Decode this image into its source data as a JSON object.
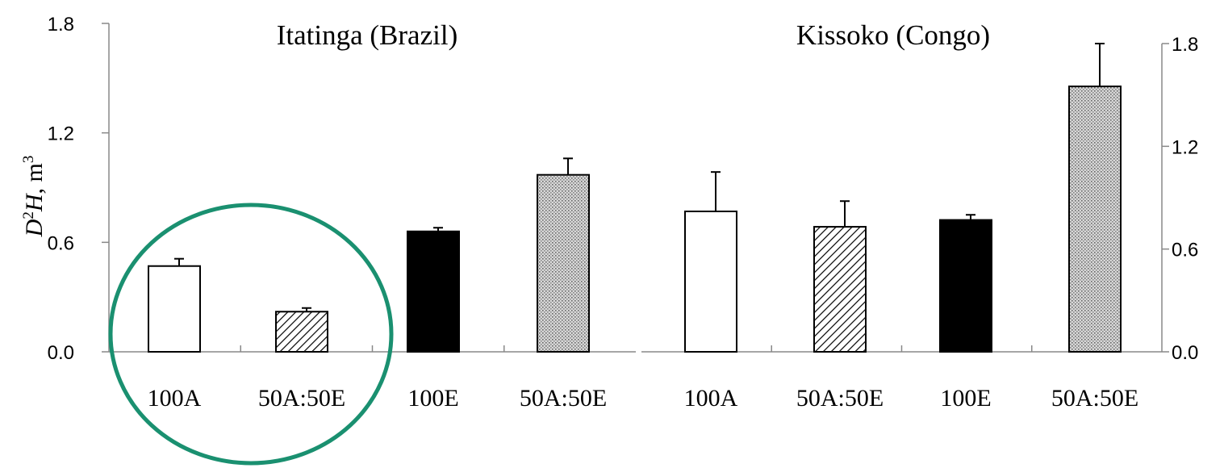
{
  "ylabel": {
    "base": "D",
    "sup1": "2",
    "italic_var": "H",
    "unit": ", m",
    "sup2": "3"
  },
  "chart_data": [
    {
      "type": "bar",
      "title": "Itatinga (Brazil)",
      "categories": [
        "100A",
        "50A:50E",
        "100E",
        "50A:50E"
      ],
      "values": [
        0.47,
        0.22,
        0.66,
        0.97
      ],
      "errors": [
        0.04,
        0.02,
        0.02,
        0.09
      ],
      "fills": [
        "white",
        "hatch",
        "black",
        "dots"
      ],
      "ylim": [
        0,
        1.8
      ],
      "yticks": [
        "0.0",
        "0.6",
        "1.2",
        "1.8"
      ],
      "axis_side": "left",
      "grid": false
    },
    {
      "type": "bar",
      "title": "Kissoko (Congo)",
      "categories": [
        "100A",
        "50A:50E",
        "100E",
        "50A:50E"
      ],
      "values": [
        0.82,
        0.73,
        0.77,
        1.55
      ],
      "errors": [
        0.23,
        0.15,
        0.03,
        0.25
      ],
      "fills": [
        "white",
        "hatch",
        "black",
        "dots"
      ],
      "ylim": [
        0,
        1.8
      ],
      "yticks": [
        "0.0",
        "0.6",
        "1.2",
        "1.8"
      ],
      "axis_side": "right",
      "grid": false
    }
  ],
  "highlight": {
    "shape": "ellipse",
    "color": "#1a9070",
    "encloses": "Itatinga (Brazil) 100A and 50A:50E"
  }
}
